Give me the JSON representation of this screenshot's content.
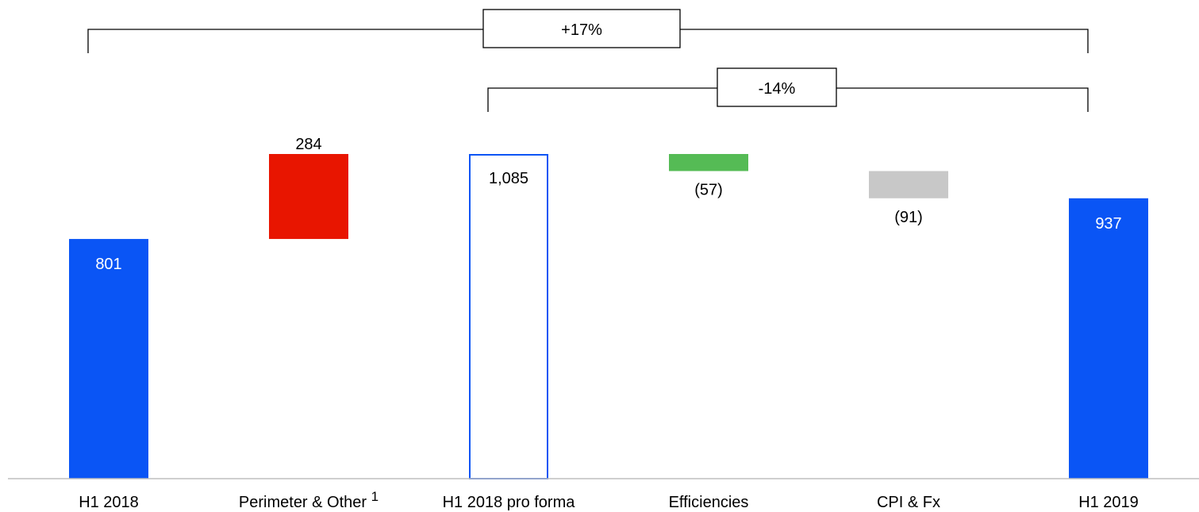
{
  "chart_data": {
    "type": "waterfall",
    "categories": [
      "H1 2018",
      "Perimeter & Other",
      "H1 2018 pro forma",
      "Efficiencies",
      "CPI & Fx",
      "H1 2019"
    ],
    "category_footnotes": [
      "",
      "1",
      "",
      "",
      "",
      ""
    ],
    "bars": [
      {
        "category": "H1 2018",
        "kind": "total",
        "start": 0,
        "end": 801,
        "label": "801",
        "color": "#0a55f5"
      },
      {
        "category": "Perimeter & Other",
        "kind": "increase",
        "start": 801,
        "end": 1085,
        "label": "284",
        "color": "#e81500"
      },
      {
        "category": "H1 2018 pro forma",
        "kind": "subtotal",
        "start": 0,
        "end": 1085,
        "label": "1,085",
        "color": "#0a55f5"
      },
      {
        "category": "Efficiencies",
        "kind": "decrease",
        "start": 1085,
        "end": 1028,
        "label": "(57)",
        "color": "#55bb55"
      },
      {
        "category": "CPI & Fx",
        "kind": "decrease",
        "start": 1028,
        "end": 937,
        "label": "(91)",
        "color": "#c8c8c8"
      },
      {
        "category": "H1 2019",
        "kind": "total",
        "start": 0,
        "end": 937,
        "label": "937",
        "color": "#0a55f5"
      }
    ],
    "annotations": [
      {
        "from": "H1 2018",
        "to": "H1 2019",
        "text": "+17%"
      },
      {
        "from": "H1 2018 pro forma",
        "to": "H1 2019",
        "text": "-14%"
      }
    ],
    "title": "",
    "xlabel": "",
    "ylabel": "",
    "ylim": [
      0,
      1085
    ],
    "grid": false,
    "legend": "none"
  }
}
